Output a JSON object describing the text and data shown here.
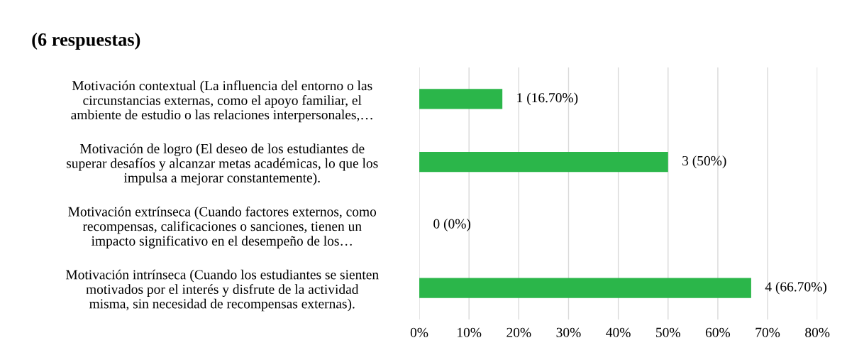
{
  "chart_data": {
    "type": "bar",
    "orientation": "horizontal",
    "title": "(6 respuestas)",
    "categories": [
      "Motivación contextual (La influencia del entorno o las\ncircunstancias externas, como el apoyo familiar, el\nambiente de estudio o las relaciones interpersonales,…",
      "Motivación de logro (El deseo de los estudiantes de\nsuperar desafíos y alcanzar metas académicas, lo que los\nimpulsa a mejorar constantemente).",
      "Motivación extrínseca (Cuando factores externos, como\nrecompensas, calificaciones o sanciones, tienen un\nimpacto significativo en el desempeño de los…",
      "Motivación intrínseca (Cuando los estudiantes se sienten\nmotivados por el interés y disfrute de la actividad\nmisma, sin necesidad de recompensas externas)."
    ],
    "values": [
      16.7,
      50,
      0,
      66.7
    ],
    "value_labels": [
      "1 (16.70%)",
      "3 (50%)",
      "0 (0%)",
      "4 (66.70%)"
    ],
    "color": "#2bb64a",
    "xlim": [
      0,
      80
    ],
    "xticks": [
      {
        "value": 0,
        "label": "0%"
      },
      {
        "value": 10,
        "label": "10%"
      },
      {
        "value": 20,
        "label": "20%"
      },
      {
        "value": 30,
        "label": "30%"
      },
      {
        "value": 40,
        "label": "40%"
      },
      {
        "value": 50,
        "label": "50%"
      },
      {
        "value": 60,
        "label": "60%"
      },
      {
        "value": 70,
        "label": "70%"
      },
      {
        "value": 80,
        "label": "80%"
      }
    ],
    "grid": "x",
    "legend": false
  }
}
